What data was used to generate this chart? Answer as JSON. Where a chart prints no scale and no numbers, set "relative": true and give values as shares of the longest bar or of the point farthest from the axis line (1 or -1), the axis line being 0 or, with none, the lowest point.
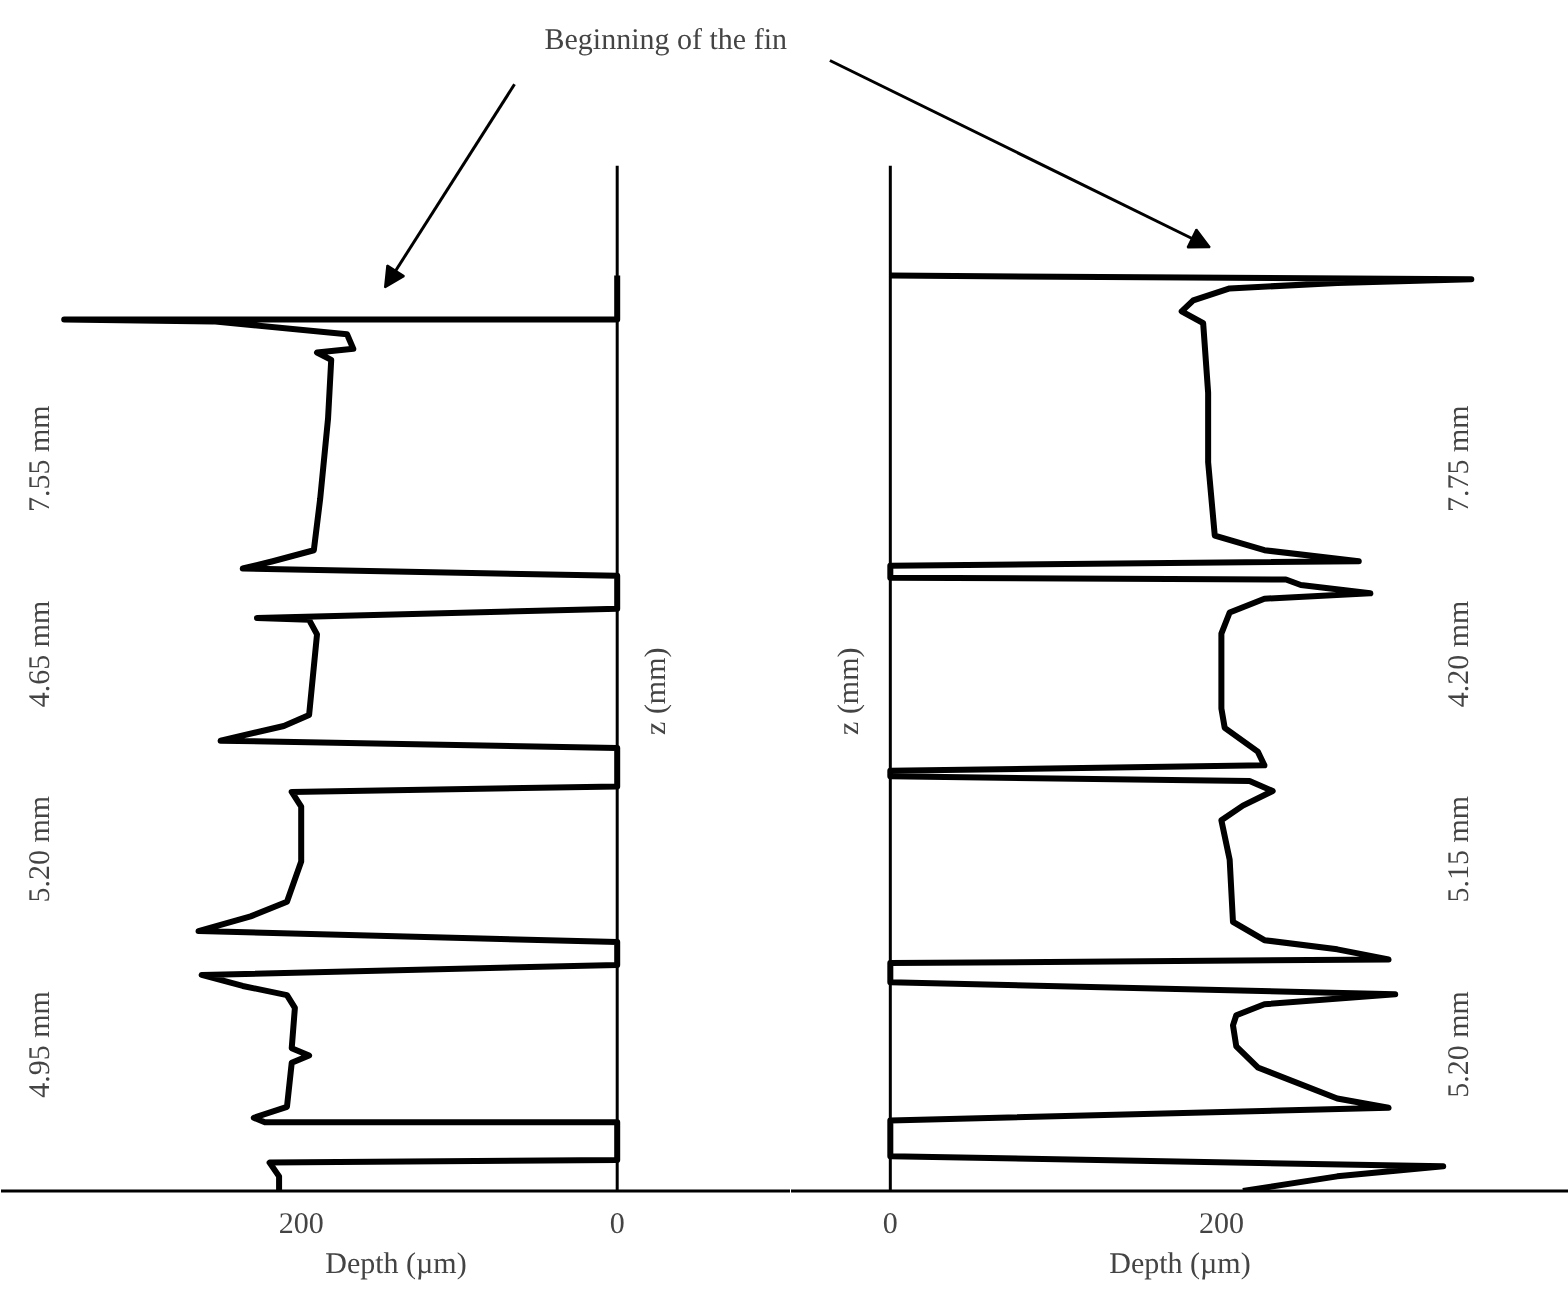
{
  "chart_data": [
    {
      "type": "line",
      "xlabel": "Depth (µm)",
      "ylabel": "z (mm)",
      "xlim": [
        390,
        -110
      ],
      "xticks": [
        0,
        200
      ],
      "relative": true,
      "tick_labels": "x",
      "line_style": "solid",
      "series": [
        {
          "color": "#000000",
          "x": [
            214,
            214,
            220,
            0,
            0,
            223,
            230,
            209,
            206,
            195,
            206,
            204,
            209,
            237,
            263,
            0,
            0,
            265,
            232,
            209,
            200,
            200,
            206,
            0,
            0,
            251,
            211,
            195,
            190,
            195,
            228,
            0,
            0,
            237,
            218,
            192,
            188,
            183,
            181,
            190,
            167,
            171,
            256,
            350,
            0,
            0
          ],
          "values": [
            0,
            0.016,
            0.031,
            0.034,
            0.075,
            0.075,
            0.08,
            0.092,
            0.14,
            0.148,
            0.156,
            0.2,
            0.214,
            0.224,
            0.236,
            0.247,
            0.272,
            0.284,
            0.3,
            0.316,
            0.36,
            0.42,
            0.436,
            0.442,
            0.484,
            0.492,
            0.508,
            0.52,
            0.608,
            0.624,
            0.626,
            0.636,
            0.672,
            0.68,
            0.688,
            0.7,
            0.756,
            0.844,
            0.908,
            0.916,
            0.92,
            0.936,
            0.95,
            0.952,
            0.952,
            1
          ]
        }
      ],
      "annotations": [
        "Beginning of the fin",
        "7.55 mm",
        "4.65 mm",
        "5.20 mm",
        "4.95 mm"
      ]
    },
    {
      "type": "line",
      "xlabel": "Depth (µm)",
      "ylabel": "z (mm)",
      "xlim": [
        -60,
        410
      ],
      "xticks": [
        0,
        200
      ],
      "relative": true,
      "tick_labels": "x",
      "line_style": "solid",
      "series": [
        {
          "color": "#000000",
          "x": [
            213,
            270,
            334,
            0,
            0,
            301,
            270,
            222,
            209,
            207,
            209,
            226,
            305,
            0,
            0,
            301,
            270,
            226,
            207,
            205,
            200,
            213,
            231,
            217,
            0,
            0,
            226,
            222,
            202,
            200,
            200,
            205,
            226,
            290,
            248,
            239,
            0,
            0,
            283,
            226,
            196,
            192,
            192,
            189,
            176,
            183,
            205,
            270,
            351,
            0
          ],
          "values": [
            0,
            0.016,
            0.027,
            0.038,
            0.077,
            0.091,
            0.101,
            0.135,
            0.158,
            0.181,
            0.192,
            0.204,
            0.215,
            0.228,
            0.249,
            0.253,
            0.264,
            0.274,
            0.294,
            0.362,
            0.405,
            0.421,
            0.437,
            0.448,
            0.453,
            0.459,
            0.465,
            0.48,
            0.506,
            0.527,
            0.609,
            0.632,
            0.647,
            0.653,
            0.662,
            0.668,
            0.67,
            0.683,
            0.688,
            0.7,
            0.716,
            0.796,
            0.872,
            0.948,
            0.961,
            0.973,
            0.986,
            0.992,
            0.996,
            1
          ]
        }
      ],
      "annotations": [
        "7.75 mm",
        "4.20 mm",
        "5.15 mm",
        "5.20 mm"
      ]
    }
  ]
}
